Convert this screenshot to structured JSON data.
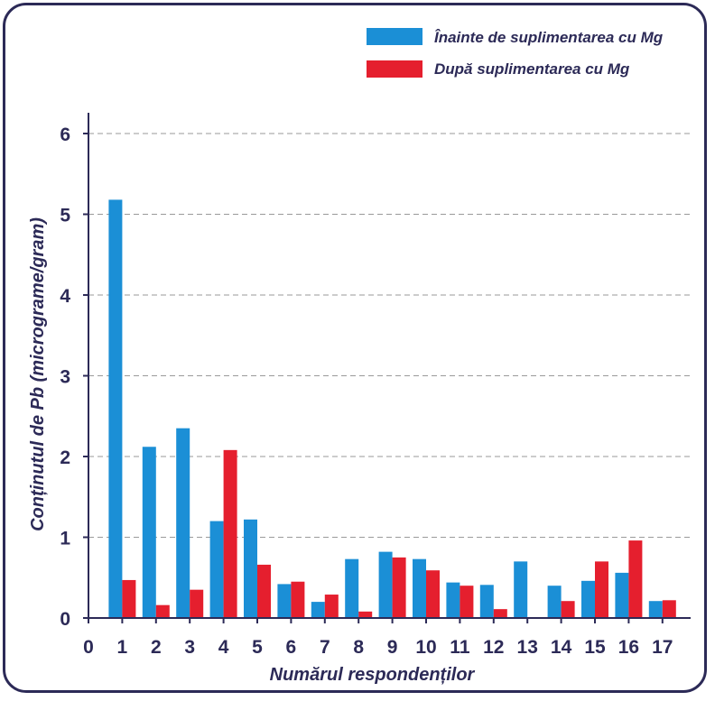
{
  "chart_data": {
    "type": "bar",
    "categories": [
      "1",
      "2",
      "3",
      "4",
      "5",
      "6",
      "7",
      "8",
      "9",
      "10",
      "11",
      "12",
      "13",
      "14",
      "15",
      "16",
      "17"
    ],
    "x_ticks": [
      "0",
      "1",
      "2",
      "3",
      "4",
      "5",
      "6",
      "7",
      "8",
      "9",
      "10",
      "11",
      "12",
      "13",
      "14",
      "15",
      "16",
      "17"
    ],
    "y_ticks": [
      "0",
      "1",
      "2",
      "3",
      "4",
      "5",
      "6"
    ],
    "series": [
      {
        "name": "Înainte de suplimentarea cu Mg",
        "color": "#1b8fd6",
        "values": [
          5.18,
          2.12,
          2.35,
          1.2,
          1.22,
          0.42,
          0.2,
          0.73,
          0.82,
          0.73,
          0.44,
          0.41,
          0.7,
          0.4,
          0.46,
          0.56,
          0.21
        ]
      },
      {
        "name": "După suplimentarea cu Mg",
        "color": "#e51f2e",
        "values": [
          0.47,
          0.16,
          0.35,
          2.08,
          0.66,
          0.45,
          0.29,
          0.08,
          0.75,
          0.59,
          0.4,
          0.11,
          0.0,
          0.21,
          0.7,
          0.96,
          0.22
        ]
      }
    ],
    "title": "",
    "xlabel": "Numărul respondenților",
    "ylabel": "Conținutul de Pb (micrograme/gram)",
    "ylim": [
      0,
      6
    ],
    "grid": true,
    "legend_position": "top-right"
  },
  "colors": {
    "frame": "#2c2a57",
    "axis": "#2c2a57",
    "grid": "#9a9a9a"
  }
}
